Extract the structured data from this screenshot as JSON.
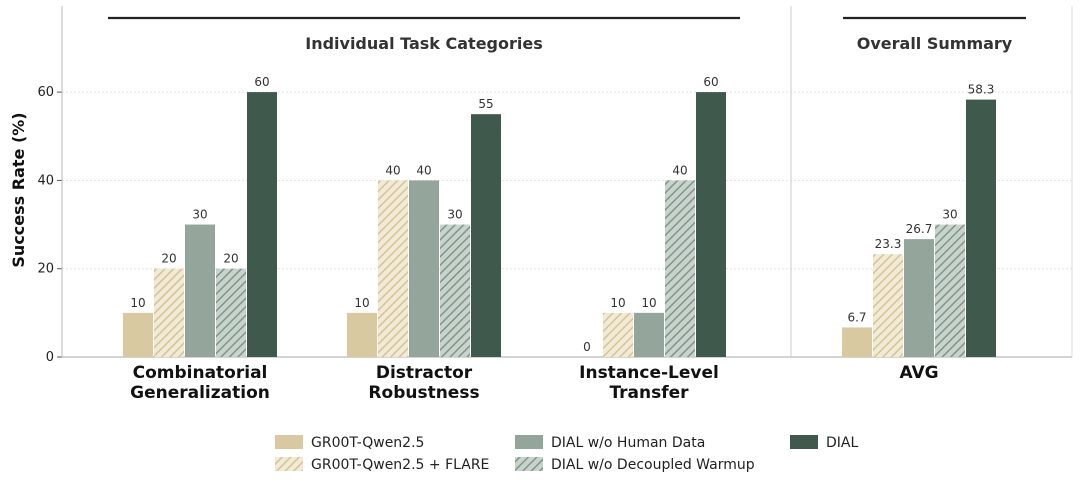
{
  "chart_data": {
    "type": "bar",
    "ylabel": "Success Rate (%)",
    "ylim": [
      0,
      77
    ],
    "yticks": [
      0,
      20,
      40,
      60
    ],
    "grid": true,
    "legend_position": "bottom",
    "sections": [
      {
        "title": "Individual Task Categories",
        "categories": [
          0,
          1,
          2
        ]
      },
      {
        "title": "Overall Summary",
        "categories": [
          3
        ]
      }
    ],
    "categories": [
      [
        "Combinatorial",
        "Generalization"
      ],
      [
        "Distractor",
        "Robustness"
      ],
      [
        "Instance-Level",
        "Transfer"
      ],
      [
        "AVG"
      ]
    ],
    "series": [
      {
        "name": "GR00T-Qwen2.5",
        "values": [
          10,
          10,
          0,
          6.7
        ],
        "labels": [
          "10",
          "10",
          "0",
          "6.7"
        ],
        "color": "#d8c9a0",
        "pattern": "solid"
      },
      {
        "name": "GR00T-Qwen2.5 + FLARE",
        "values": [
          20,
          40,
          10,
          23.3
        ],
        "labels": [
          "20",
          "40",
          "10",
          "23.3"
        ],
        "color": "#e8dcbc",
        "pattern": "hatch-light"
      },
      {
        "name": "DIAL w/o Human Data",
        "values": [
          30,
          40,
          10,
          26.7
        ],
        "labels": [
          "30",
          "40",
          "10",
          "26.7"
        ],
        "color": "#94a69b",
        "pattern": "solid"
      },
      {
        "name": "DIAL w/o Decoupled Warmup",
        "values": [
          20,
          30,
          40,
          30
        ],
        "labels": [
          "20",
          "30",
          "40",
          "30"
        ],
        "color": "#9fb0a6",
        "pattern": "hatch-dark"
      },
      {
        "name": "DIAL",
        "values": [
          60,
          55,
          60,
          58.3
        ],
        "labels": [
          "60",
          "55",
          "60",
          "58.3"
        ],
        "color": "#3f5a4c",
        "pattern": "solid"
      }
    ]
  }
}
